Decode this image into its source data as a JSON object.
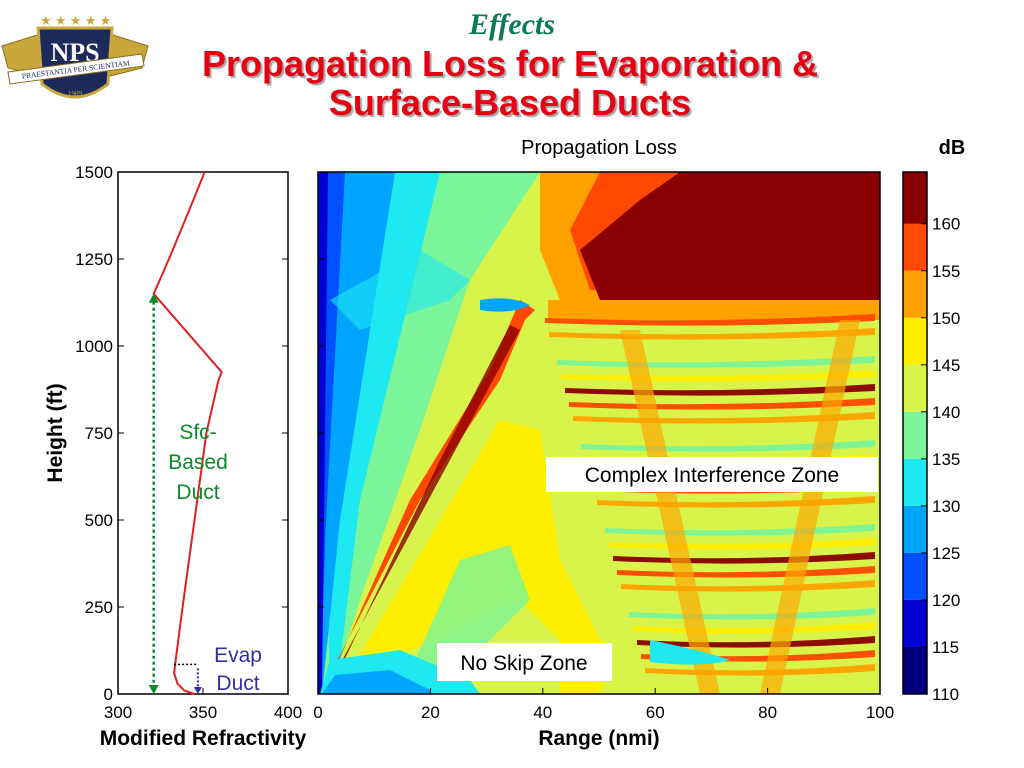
{
  "slide": {
    "section": "Effects",
    "title": "Propagation Loss for Evaporation & Surface-Based Ducts",
    "logo": {
      "text": "NPS",
      "motto": "PRAESTANTIA PER SCIENTIAM",
      "year": "1909"
    }
  },
  "colors": {
    "section": "#0a7a5a",
    "title": "#e60012",
    "profile": "#e02020",
    "sfc_duct": "#0a8a2a",
    "evap_duct": "#3030a0"
  },
  "chart_data": [
    {
      "type": "line",
      "title": "",
      "xlabel": "Modified Refractivity",
      "ylabel": "Height (ft)",
      "xlim": [
        300,
        400
      ],
      "ylim": [
        0,
        1500
      ],
      "xticks": [
        300,
        350,
        400
      ],
      "yticks": [
        0,
        250,
        500,
        750,
        1000,
        1250,
        1500
      ],
      "series": [
        {
          "x": [
            345,
            339,
            335,
            333,
            334,
            338,
            345,
            352,
            359,
            361,
            321,
            330,
            341,
            351
          ],
          "y": [
            0,
            10,
            30,
            60,
            100,
            250,
            500,
            750,
            900,
            925,
            1150,
            1250,
            1380,
            1500
          ]
        }
      ],
      "annotations": [
        {
          "text": "Sfc-\nBased\nDuct",
          "range_y": [
            0,
            1150
          ],
          "x": 321
        },
        {
          "text": "Evap\nDuct",
          "range_y": [
            0,
            85
          ],
          "x": 347
        }
      ]
    },
    {
      "type": "heatmap",
      "title": "Propagation Loss",
      "xlabel": "Range (nmi)",
      "ylabel": "",
      "xlim": [
        0,
        100
      ],
      "ylim": [
        0,
        1500
      ],
      "xticks": [
        0,
        20,
        40,
        60,
        80,
        100
      ],
      "colorbar": {
        "label": "dB",
        "ticks": [
          110,
          115,
          120,
          125,
          130,
          135,
          140,
          145,
          150,
          155,
          160
        ],
        "levels": [
          {
            "lo": 110,
            "color": "#00007f"
          },
          {
            "lo": 115,
            "color": "#0000d0"
          },
          {
            "lo": 120,
            "color": "#0050ff"
          },
          {
            "lo": 125,
            "color": "#00a5ff"
          },
          {
            "lo": 130,
            "color": "#1ee8f0"
          },
          {
            "lo": 135,
            "color": "#7af59a"
          },
          {
            "lo": 140,
            "color": "#d8f44a"
          },
          {
            "lo": 145,
            "color": "#ffee00"
          },
          {
            "lo": 150,
            "color": "#ffa200"
          },
          {
            "lo": 155,
            "color": "#ff4800"
          },
          {
            "lo": 160,
            "color": "#8a0000"
          }
        ]
      },
      "zones": [
        {
          "label": "Complex Interference Zone",
          "range_nmi": [
            40,
            100
          ],
          "height_ft": [
            0,
            1100
          ]
        },
        {
          "label": "No Skip Zone",
          "range_nmi": [
            0,
            50
          ],
          "height_ft": [
            0,
            300
          ]
        }
      ]
    }
  ]
}
